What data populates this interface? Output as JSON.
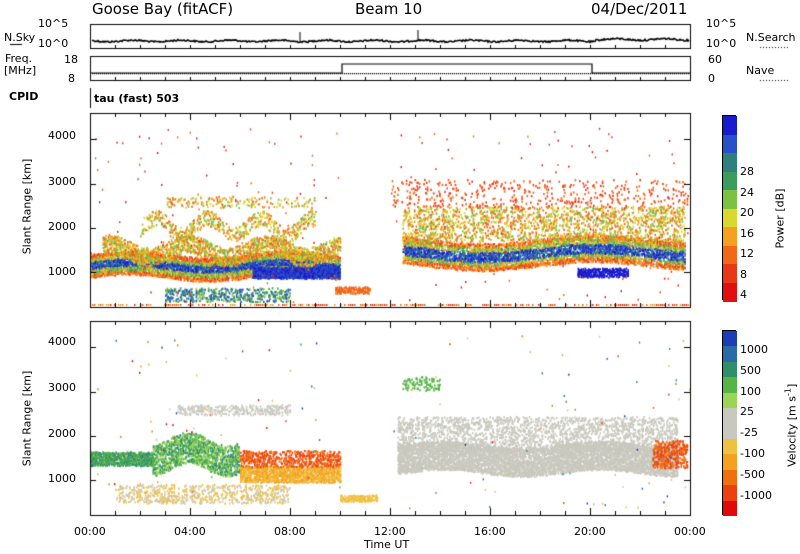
{
  "header": {
    "station": "Goose Bay (fitACF)",
    "beam": "Beam 10",
    "date": "04/Dec/2011"
  },
  "top_panels": {
    "nsky_label": "N.Sky",
    "nsky_ticks": [
      "10^5",
      "10^0"
    ],
    "nsearch_label": "N.Search",
    "nsearch_ticks": [
      "10^5",
      "10^0"
    ],
    "freq_label_line1": "Freq.",
    "freq_label_line2": "[MHz]",
    "freq_ticks": [
      "18",
      "8"
    ],
    "nave_label": "Nave",
    "nave_ticks": [
      "60",
      "0"
    ],
    "cpid_label": "CPID",
    "cpid_text": "tau (fast) 503"
  },
  "chart_data": [
    {
      "type": "heatmap",
      "name": "power",
      "ylabel": "Slant Range [km]",
      "ylim": [
        200,
        4600
      ],
      "yticks": [
        "4000",
        "3000",
        "2000",
        "1000"
      ],
      "yticks_values": [
        4000,
        3000,
        2000,
        1000
      ],
      "colorbar_label": "Power [dB]",
      "colorbar_ticks": [
        "28",
        "24",
        "20",
        "16",
        "12",
        "8",
        "4"
      ],
      "colorbar_colors": [
        "#1a1acd",
        "#2850c8",
        "#2f7f7f",
        "#3c9c5c",
        "#7cc044",
        "#d8d830",
        "#f6a020",
        "#f06818",
        "#e83818",
        "#e01010"
      ]
    },
    {
      "type": "heatmap",
      "name": "velocity",
      "ylabel": "Slant Range [km]",
      "ylim": [
        200,
        4600
      ],
      "yticks": [
        "4000",
        "3000",
        "2000",
        "1000"
      ],
      "yticks_values": [
        4000,
        3000,
        2000,
        1000
      ],
      "colorbar_label": "Velocity [m s",
      "colorbar_label_sup": "-1",
      "colorbar_label_end": "]",
      "colorbar_ticks": [
        "1000",
        "500",
        "100",
        "25",
        "-25",
        "-100",
        "-500",
        "-1000"
      ],
      "colorbar_colors": [
        "#1c3cb8",
        "#2a6aa6",
        "#2f8f6a",
        "#56b546",
        "#9cd45a",
        "#c8c8be",
        "#c8c8be",
        "#f0c040",
        "#f4a020",
        "#f07010",
        "#ec4010",
        "#e00a0a"
      ]
    }
  ],
  "x_axis": {
    "label": "Time UT",
    "ticks": [
      "00:00",
      "04:00",
      "08:00",
      "12:00",
      "16:00",
      "20:00",
      "00:00"
    ],
    "tick_hours": [
      0,
      4,
      8,
      12,
      16,
      20,
      24
    ]
  }
}
